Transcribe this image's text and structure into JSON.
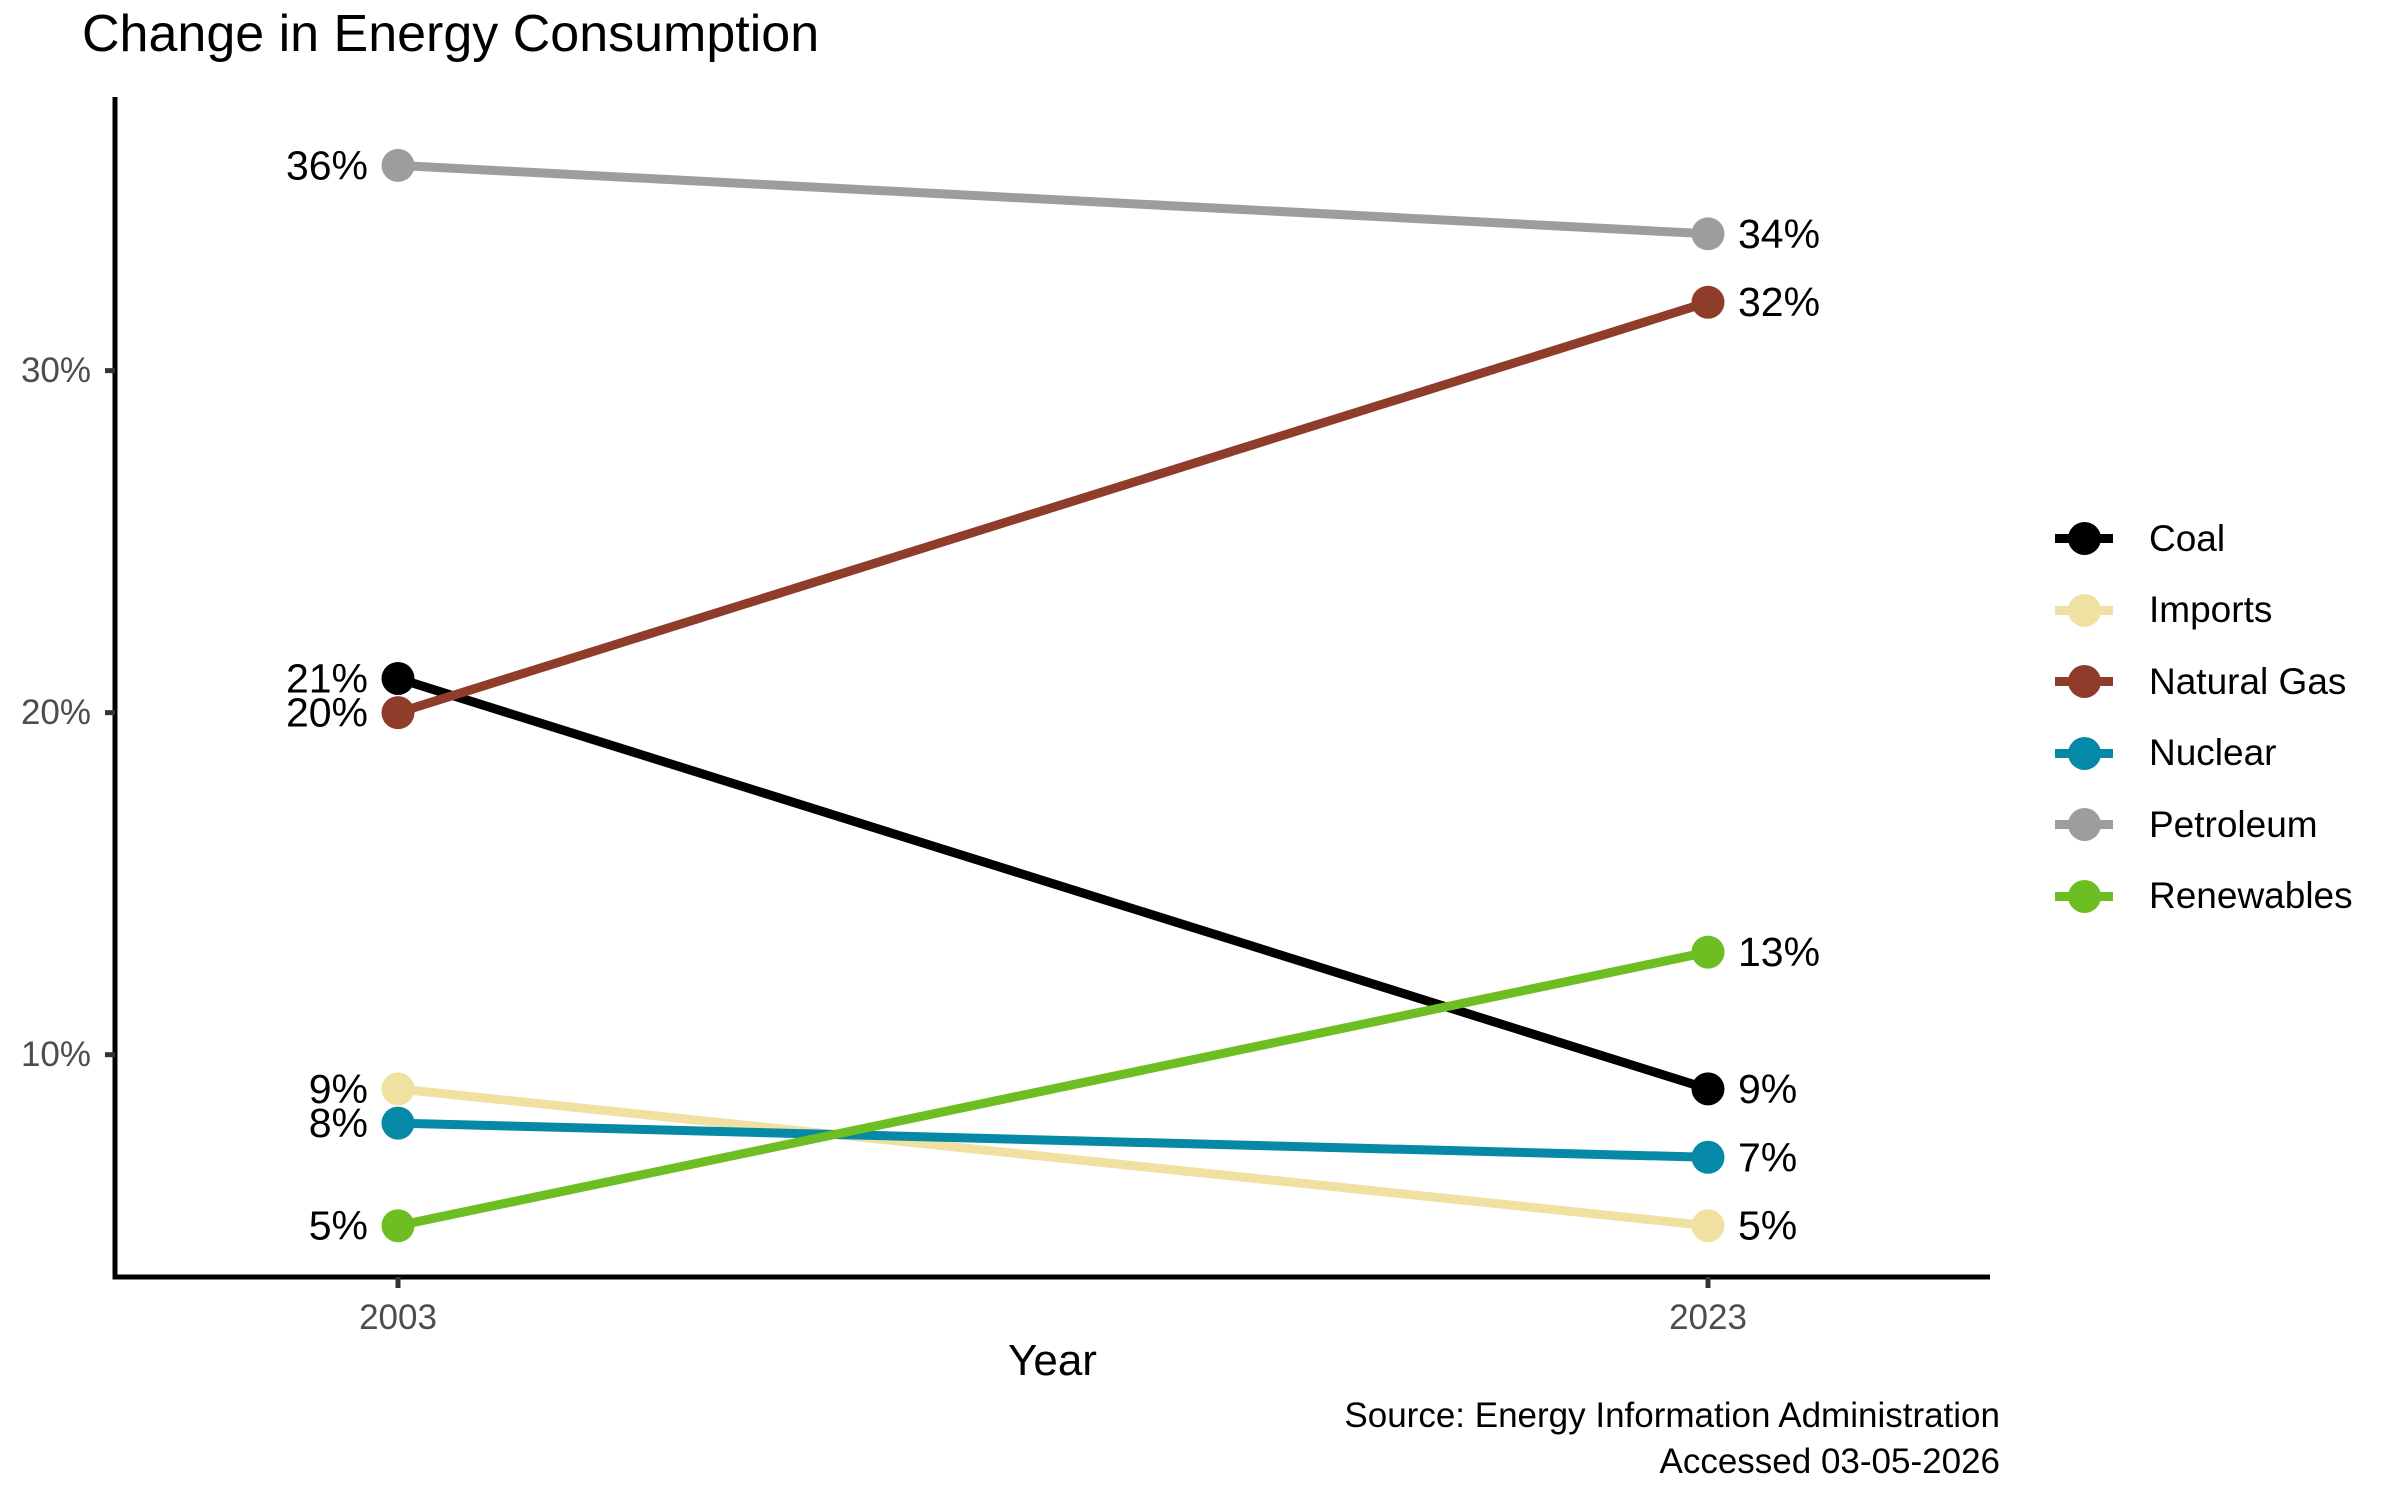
{
  "title": "Change in Energy Consumption",
  "x_axis": {
    "label": "Year",
    "ticks": [
      "2003",
      "2023"
    ]
  },
  "y_axis": {
    "ticks": [
      "10%",
      "20%",
      "30%"
    ]
  },
  "caption": {
    "line1": "Source: Energy Information Administration",
    "line2": "Accessed 03-05-2026"
  },
  "legend": {
    "items": [
      "Coal",
      "Imports",
      "Natural Gas",
      "Nuclear",
      "Petroleum",
      "Renewables"
    ]
  },
  "chart_data": {
    "type": "line",
    "title": "Change in Energy Consumption",
    "xlabel": "Year",
    "ylabel": "",
    "x": [
      2003,
      2023
    ],
    "categories": [
      "2003",
      "2023"
    ],
    "series": [
      {
        "name": "Coal",
        "color": "#000000",
        "values": [
          21,
          9
        ],
        "point_labels": [
          "21%",
          "9%"
        ]
      },
      {
        "name": "Imports",
        "color": "#F0E0A2",
        "values": [
          9,
          5
        ],
        "point_labels": [
          "9%",
          "5%"
        ]
      },
      {
        "name": "Natural Gas",
        "color": "#8F3D2A",
        "values": [
          20,
          32
        ],
        "point_labels": [
          "20%",
          "32%"
        ]
      },
      {
        "name": "Nuclear",
        "color": "#0689A6",
        "values": [
          8,
          7
        ],
        "point_labels": [
          "8%",
          "7%"
        ]
      },
      {
        "name": "Petroleum",
        "color": "#9D9D9D",
        "values": [
          36,
          34
        ],
        "point_labels": [
          "36%",
          "34%"
        ]
      },
      {
        "name": "Renewables",
        "color": "#6CBE23",
        "values": [
          5,
          13
        ],
        "point_labels": [
          "5%",
          "13%"
        ]
      }
    ],
    "ylim": [
      3.5,
      38
    ],
    "y_tick_values": [
      10,
      20,
      30
    ],
    "y_tick_labels": [
      "10%",
      "20%",
      "30%"
    ],
    "grid": false,
    "legend_position": "right",
    "axis_color": "#000000",
    "tick_label_color": "#4D4D4D"
  }
}
